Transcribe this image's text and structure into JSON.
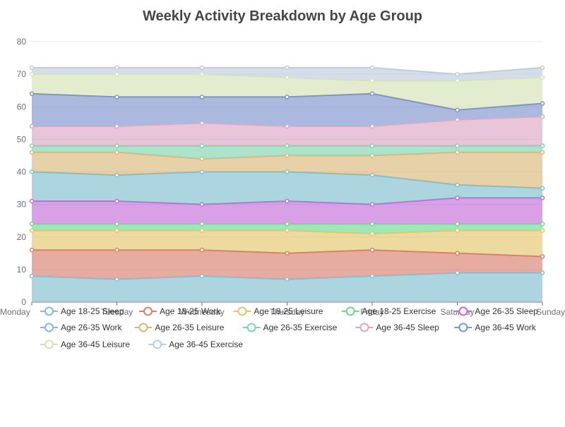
{
  "chart_data": {
    "type": "area",
    "stacked": true,
    "title": "Weekly Activity Breakdown by Age Group",
    "xlabel": "",
    "ylabel": "",
    "ylim": [
      0,
      80
    ],
    "yticks": [
      0,
      10,
      20,
      30,
      40,
      50,
      60,
      70,
      80
    ],
    "grid": true,
    "legend_position": "bottom",
    "categories": [
      "Monday",
      "Tuesday",
      "Wednesday",
      "Thursday",
      "Friday",
      "Saturday",
      "Sunday"
    ],
    "series": [
      {
        "name": "Age 18-25 Sleep",
        "color": "#7fbfd0",
        "values": [
          8,
          7,
          8,
          7,
          8,
          9,
          9
        ]
      },
      {
        "name": "Age 18-25 Work",
        "color": "#d9806e",
        "values": [
          8,
          9,
          8,
          8,
          8,
          6,
          5
        ]
      },
      {
        "name": "Age 18-25 Leisure",
        "color": "#e5c46b",
        "values": [
          6,
          6,
          6,
          7,
          5,
          7,
          8
        ]
      },
      {
        "name": "Age 18-25 Exercise",
        "color": "#6ed88f",
        "values": [
          2,
          2,
          2,
          2,
          3,
          2,
          2
        ]
      },
      {
        "name": "Age 26-35 Sleep",
        "color": "#c36fd9",
        "values": [
          7,
          7,
          6,
          7,
          6,
          8,
          8
        ]
      },
      {
        "name": "Age 26-35 Work",
        "color": "#7fbfd0",
        "values": [
          9,
          8,
          10,
          9,
          9,
          4,
          3
        ]
      },
      {
        "name": "Age 26-35 Leisure",
        "color": "#d9b87a",
        "values": [
          6,
          7,
          4,
          5,
          6,
          10,
          11
        ]
      },
      {
        "name": "Age 26-35 Exercise",
        "color": "#7fd4ae",
        "values": [
          2,
          2,
          4,
          3,
          3,
          2,
          2
        ]
      },
      {
        "name": "Age 36-45 Sleep",
        "color": "#dba8c3",
        "values": [
          6,
          6,
          7,
          6,
          6,
          8,
          9
        ]
      },
      {
        "name": "Age 36-45 Work",
        "color": "#7f93cc",
        "values": [
          10,
          9,
          8,
          9,
          10,
          3,
          4
        ]
      },
      {
        "name": "Age 36-45 Leisure",
        "color": "#d5e2b6",
        "values": [
          6,
          7,
          7,
          6,
          4,
          9,
          8
        ]
      },
      {
        "name": "Age 36-45 Exercise",
        "color": "#bccddb",
        "values": [
          2,
          2,
          2,
          3,
          4,
          2,
          3
        ]
      }
    ]
  }
}
